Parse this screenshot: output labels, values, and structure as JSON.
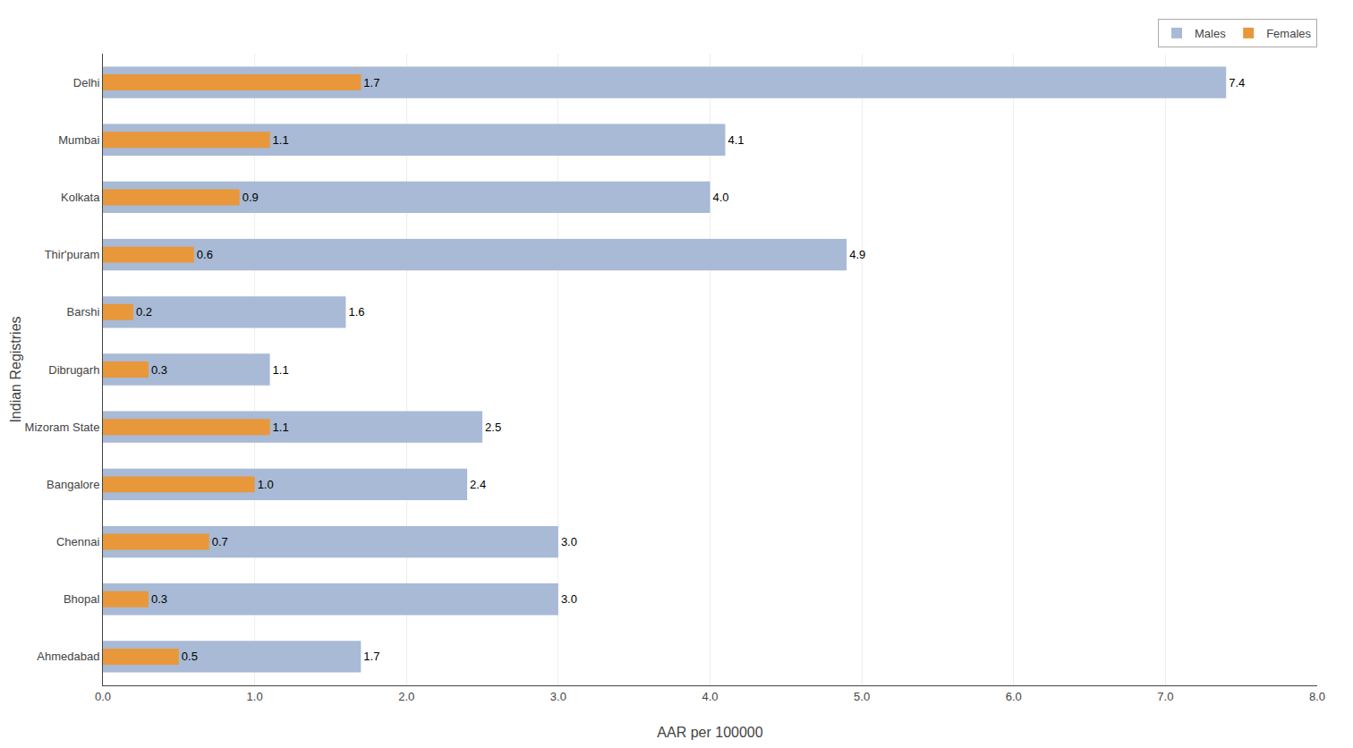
{
  "chart_data": {
    "type": "bar",
    "orientation": "horizontal",
    "stacked": false,
    "categories": [
      "Delhi",
      "Mumbai",
      "Kolkata",
      "Thir'puram",
      "Barshi",
      "Dibrugarh",
      "Mizoram State",
      "Bangalore",
      "Chennai",
      "Bhopal",
      "Ahmedabad"
    ],
    "series": [
      {
        "name": "Males",
        "color": "#A8BAD5",
        "values": [
          7.4,
          4.1,
          4.0,
          4.9,
          1.6,
          1.1,
          2.5,
          2.4,
          3.0,
          3.0,
          1.7
        ],
        "value_labels": [
          "7.4",
          "4.1",
          "4.0",
          "4.9",
          "1.6",
          "1.1",
          "2.5",
          "2.4",
          "3.0",
          "3.0",
          "1.7"
        ]
      },
      {
        "name": "Females",
        "color": "#E8973A",
        "values": [
          1.7,
          1.1,
          0.9,
          0.6,
          0.2,
          0.3,
          1.1,
          1.0,
          0.7,
          0.3,
          0.5
        ],
        "value_labels": [
          "1.7",
          "1.1",
          "0.9",
          "0.6",
          "0.2",
          "0.3",
          "1.1",
          "1.0",
          "0.7",
          "0.3",
          "0.5"
        ]
      }
    ],
    "xlabel": "AAR per 100000",
    "ylabel": "Indian Registries",
    "xlim": [
      0,
      8.0
    ],
    "xticks": [
      {
        "value": 0,
        "label": "0.0"
      },
      {
        "value": 1,
        "label": "1.0"
      },
      {
        "value": 2,
        "label": "2.0"
      },
      {
        "value": 3,
        "label": "3.0"
      },
      {
        "value": 4,
        "label": "4.0"
      },
      {
        "value": 5,
        "label": "5.0"
      },
      {
        "value": 6,
        "label": "6.0"
      },
      {
        "value": 7,
        "label": "7.0"
      },
      {
        "value": 8,
        "label": "8.0"
      }
    ],
    "grid": "x",
    "legend": "upper right",
    "data_labels": true
  }
}
